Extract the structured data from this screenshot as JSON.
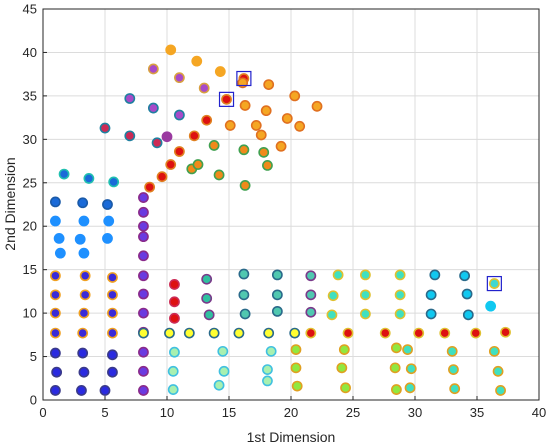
{
  "chart_data": {
    "type": "scatter",
    "title": "",
    "xlabel": "1st Dimension",
    "ylabel": "2nd Dimension",
    "xlim": [
      0,
      40
    ],
    "ylim": [
      0,
      45
    ],
    "xticks": [
      0,
      5,
      10,
      15,
      20,
      25,
      30,
      35,
      40
    ],
    "yticks": [
      0,
      5,
      10,
      15,
      20,
      25,
      30,
      35,
      40,
      45
    ],
    "grid": true,
    "colors": {
      "grid": "#dcdcdc",
      "axis": "#262626",
      "highlight_box": "#2222cc"
    },
    "points": [
      {
        "x": 1.0,
        "y": 1.1,
        "fill": "#2a2ae0",
        "edge": "#3a3a8a"
      },
      {
        "x": 3.1,
        "y": 1.1,
        "fill": "#2a2ae0",
        "edge": "#3a3a8a"
      },
      {
        "x": 5.0,
        "y": 1.1,
        "fill": "#2a2ae0",
        "edge": "#3a3a8a"
      },
      {
        "x": 1.1,
        "y": 3.2,
        "fill": "#2a2ae0",
        "edge": "#3a3a8a"
      },
      {
        "x": 3.3,
        "y": 3.2,
        "fill": "#2a2ae0",
        "edge": "#3a3a8a"
      },
      {
        "x": 5.6,
        "y": 3.2,
        "fill": "#2a2ae0",
        "edge": "#3a3a8a"
      },
      {
        "x": 1.0,
        "y": 5.4,
        "fill": "#2a2ae0",
        "edge": "#3a3a8a"
      },
      {
        "x": 3.2,
        "y": 5.4,
        "fill": "#2a2ae0",
        "edge": "#3a3a8a"
      },
      {
        "x": 5.6,
        "y": 5.2,
        "fill": "#2a2ae0",
        "edge": "#3a3a8a"
      },
      {
        "x": 1.0,
        "y": 7.7,
        "fill": "#3a2ad8",
        "edge": "#f0a020"
      },
      {
        "x": 3.2,
        "y": 7.7,
        "fill": "#3a2ad8",
        "edge": "#f0a020"
      },
      {
        "x": 5.6,
        "y": 7.7,
        "fill": "#3a2ad8",
        "edge": "#f0a020"
      },
      {
        "x": 1.0,
        "y": 10.0,
        "fill": "#3a2ad8",
        "edge": "#f0a020"
      },
      {
        "x": 3.3,
        "y": 10.0,
        "fill": "#3a2ad8",
        "edge": "#f0a020"
      },
      {
        "x": 5.6,
        "y": 10.0,
        "fill": "#3a2ad8",
        "edge": "#f0a020"
      },
      {
        "x": 1.0,
        "y": 12.1,
        "fill": "#3a2ad8",
        "edge": "#f0a020"
      },
      {
        "x": 3.4,
        "y": 12.1,
        "fill": "#3a2ad8",
        "edge": "#f0a020"
      },
      {
        "x": 5.6,
        "y": 12.1,
        "fill": "#3a2ad8",
        "edge": "#f0a020"
      },
      {
        "x": 1.0,
        "y": 14.3,
        "fill": "#3a2ad8",
        "edge": "#f0a020"
      },
      {
        "x": 3.4,
        "y": 14.3,
        "fill": "#3a2ad8",
        "edge": "#f0a020"
      },
      {
        "x": 5.6,
        "y": 14.1,
        "fill": "#3a2ad8",
        "edge": "#f0a020"
      },
      {
        "x": 1.4,
        "y": 16.9,
        "fill": "#1e90ff",
        "edge": "#1e90ff"
      },
      {
        "x": 3.3,
        "y": 16.9,
        "fill": "#1e90ff",
        "edge": "#1e90ff"
      },
      {
        "x": 1.3,
        "y": 18.6,
        "fill": "#1e90ff",
        "edge": "#1e90ff"
      },
      {
        "x": 3.0,
        "y": 18.5,
        "fill": "#1e90ff",
        "edge": "#1e90ff"
      },
      {
        "x": 5.2,
        "y": 18.6,
        "fill": "#1e90ff",
        "edge": "#1e90ff"
      },
      {
        "x": 1.0,
        "y": 20.6,
        "fill": "#1e90ff",
        "edge": "#1e90ff"
      },
      {
        "x": 3.3,
        "y": 20.6,
        "fill": "#1e90ff",
        "edge": "#1e90ff"
      },
      {
        "x": 5.3,
        "y": 20.6,
        "fill": "#1e90ff",
        "edge": "#1e90ff"
      },
      {
        "x": 1.0,
        "y": 22.8,
        "fill": "#1a6ad8",
        "edge": "#1a5aa8"
      },
      {
        "x": 3.2,
        "y": 22.7,
        "fill": "#1a6ad8",
        "edge": "#1a5aa8"
      },
      {
        "x": 5.2,
        "y": 22.5,
        "fill": "#1a6ad8",
        "edge": "#1a5aa8"
      },
      {
        "x": 1.7,
        "y": 26.0,
        "fill": "#1a6ad8",
        "edge": "#20c0b0"
      },
      {
        "x": 3.7,
        "y": 25.5,
        "fill": "#1a6ad8",
        "edge": "#20c0b0"
      },
      {
        "x": 5.7,
        "y": 25.1,
        "fill": "#1a6ad8",
        "edge": "#20c0b0"
      },
      {
        "x": 8.1,
        "y": 1.1,
        "fill": "#6a3ae0",
        "edge": "#8a2a8a"
      },
      {
        "x": 8.1,
        "y": 3.3,
        "fill": "#6a3ae0",
        "edge": "#8a2a8a"
      },
      {
        "x": 8.1,
        "y": 5.5,
        "fill": "#6a3ae0",
        "edge": "#8a2a8a"
      },
      {
        "x": 8.1,
        "y": 7.8,
        "fill": "#6a3ae0",
        "edge": "#8a2a8a"
      },
      {
        "x": 8.1,
        "y": 10.0,
        "fill": "#6a3ae0",
        "edge": "#8a2a8a"
      },
      {
        "x": 8.1,
        "y": 12.2,
        "fill": "#6a3ae0",
        "edge": "#8a2a8a"
      },
      {
        "x": 8.1,
        "y": 14.3,
        "fill": "#6a3ae0",
        "edge": "#8a2a8a"
      },
      {
        "x": 8.1,
        "y": 16.6,
        "fill": "#6a3ae0",
        "edge": "#8a2a8a"
      },
      {
        "x": 8.1,
        "y": 18.8,
        "fill": "#6a3ae0",
        "edge": "#8a2a8a"
      },
      {
        "x": 8.1,
        "y": 20.0,
        "fill": "#6a3ae0",
        "edge": "#8a2a8a"
      },
      {
        "x": 8.1,
        "y": 21.6,
        "fill": "#6a3ae0",
        "edge": "#8a2a8a"
      },
      {
        "x": 8.1,
        "y": 23.3,
        "fill": "#6a3ae0",
        "edge": "#8a2a8a"
      },
      {
        "x": 8.6,
        "y": 24.5,
        "fill": "#dd1111",
        "edge": "#e08020"
      },
      {
        "x": 9.6,
        "y": 25.7,
        "fill": "#dd1111",
        "edge": "#e08020"
      },
      {
        "x": 10.3,
        "y": 27.1,
        "fill": "#dd1111",
        "edge": "#e08020"
      },
      {
        "x": 11.0,
        "y": 28.6,
        "fill": "#dd1111",
        "edge": "#e08020"
      },
      {
        "x": 12.2,
        "y": 30.4,
        "fill": "#dd1111",
        "edge": "#e08020"
      },
      {
        "x": 13.2,
        "y": 32.2,
        "fill": "#dd1111",
        "edge": "#e08020"
      },
      {
        "x": 14.8,
        "y": 34.6,
        "fill": "#dd1111",
        "edge": "#e08020"
      },
      {
        "x": 16.2,
        "y": 37.0,
        "fill": "#dd1111",
        "edge": "#e08020"
      },
      {
        "x": 10.3,
        "y": 40.3,
        "fill": "#f5a623",
        "edge": "#f5a623"
      },
      {
        "x": 12.4,
        "y": 39.0,
        "fill": "#f5a623",
        "edge": "#f5a623"
      },
      {
        "x": 14.3,
        "y": 37.8,
        "fill": "#f5a623",
        "edge": "#f5a623"
      },
      {
        "x": 8.9,
        "y": 38.1,
        "fill": "#a84ac8",
        "edge": "#d8a040"
      },
      {
        "x": 11.0,
        "y": 37.1,
        "fill": "#a84ac8",
        "edge": "#d8a040"
      },
      {
        "x": 13.0,
        "y": 35.9,
        "fill": "#a84ac8",
        "edge": "#d8a040"
      },
      {
        "x": 7.0,
        "y": 34.7,
        "fill": "#a84ac8",
        "edge": "#2080a0"
      },
      {
        "x": 8.9,
        "y": 33.6,
        "fill": "#a84ac8",
        "edge": "#2080a0"
      },
      {
        "x": 11.0,
        "y": 32.8,
        "fill": "#a84ac8",
        "edge": "#2080a0"
      },
      {
        "x": 5.0,
        "y": 31.3,
        "fill": "#cc2a55",
        "edge": "#2080a0"
      },
      {
        "x": 7.0,
        "y": 30.4,
        "fill": "#cc2a55",
        "edge": "#2080a0"
      },
      {
        "x": 9.2,
        "y": 29.6,
        "fill": "#cc2a55",
        "edge": "#2080a0"
      },
      {
        "x": 10.0,
        "y": 30.3,
        "fill": "#9a3aa0",
        "edge": "#9a3aa0"
      },
      {
        "x": 12.0,
        "y": 26.6,
        "fill": "#f08a1a",
        "edge": "#40a050"
      },
      {
        "x": 14.2,
        "y": 25.9,
        "fill": "#f08a1a",
        "edge": "#40a050"
      },
      {
        "x": 16.3,
        "y": 24.7,
        "fill": "#f08a1a",
        "edge": "#40a050"
      },
      {
        "x": 13.8,
        "y": 29.3,
        "fill": "#f08a1a",
        "edge": "#40a050"
      },
      {
        "x": 16.2,
        "y": 28.8,
        "fill": "#f08a1a",
        "edge": "#40a050"
      },
      {
        "x": 17.8,
        "y": 28.5,
        "fill": "#f08a1a",
        "edge": "#40a050"
      },
      {
        "x": 12.5,
        "y": 27.1,
        "fill": "#f08a1a",
        "edge": "#40a050"
      },
      {
        "x": 18.1,
        "y": 27.0,
        "fill": "#f08a1a",
        "edge": "#40a050"
      },
      {
        "x": 15.1,
        "y": 31.6,
        "fill": "#f5a623",
        "edge": "#e07020"
      },
      {
        "x": 16.3,
        "y": 33.9,
        "fill": "#f5a623",
        "edge": "#e07020"
      },
      {
        "x": 16.1,
        "y": 36.5,
        "fill": "#f5a623",
        "edge": "#e07020"
      },
      {
        "x": 17.2,
        "y": 31.6,
        "fill": "#f5a623",
        "edge": "#e07020"
      },
      {
        "x": 17.6,
        "y": 30.5,
        "fill": "#f5a623",
        "edge": "#e07020"
      },
      {
        "x": 18.0,
        "y": 33.3,
        "fill": "#f5a623",
        "edge": "#e07020"
      },
      {
        "x": 18.2,
        "y": 36.3,
        "fill": "#f5a623",
        "edge": "#e07020"
      },
      {
        "x": 19.2,
        "y": 29.2,
        "fill": "#f5a623",
        "edge": "#e07020"
      },
      {
        "x": 19.7,
        "y": 32.4,
        "fill": "#f5a623",
        "edge": "#e07020"
      },
      {
        "x": 20.3,
        "y": 35.0,
        "fill": "#f5a623",
        "edge": "#e07020"
      },
      {
        "x": 20.7,
        "y": 31.5,
        "fill": "#f5a623",
        "edge": "#e07020"
      },
      {
        "x": 22.1,
        "y": 33.8,
        "fill": "#f5a623",
        "edge": "#e07020"
      },
      {
        "x": 8.1,
        "y": 7.7,
        "fill": "#ffff30",
        "edge": "#2a6a8a"
      },
      {
        "x": 10.2,
        "y": 7.7,
        "fill": "#ffff30",
        "edge": "#2a6a8a"
      },
      {
        "x": 11.8,
        "y": 7.7,
        "fill": "#ffff30",
        "edge": "#2a6a8a"
      },
      {
        "x": 13.8,
        "y": 7.7,
        "fill": "#ffff30",
        "edge": "#2a6a8a"
      },
      {
        "x": 15.8,
        "y": 7.7,
        "fill": "#ffff30",
        "edge": "#2a6a8a"
      },
      {
        "x": 18.2,
        "y": 7.7,
        "fill": "#ffff30",
        "edge": "#2a6a8a"
      },
      {
        "x": 20.3,
        "y": 7.7,
        "fill": "#ffff30",
        "edge": "#2a6a8a"
      },
      {
        "x": 10.6,
        "y": 13.3,
        "fill": "#dd1111",
        "edge": "#cc2a55"
      },
      {
        "x": 10.6,
        "y": 11.3,
        "fill": "#dd1111",
        "edge": "#cc2a55"
      },
      {
        "x": 10.6,
        "y": 9.4,
        "fill": "#dd1111",
        "edge": "#cc2a55"
      },
      {
        "x": 13.2,
        "y": 13.9,
        "fill": "#30c0a0",
        "edge": "#7a3a8a"
      },
      {
        "x": 13.2,
        "y": 11.7,
        "fill": "#30c0a0",
        "edge": "#7a3a8a"
      },
      {
        "x": 13.4,
        "y": 9.8,
        "fill": "#30c0a0",
        "edge": "#7a3a8a"
      },
      {
        "x": 16.2,
        "y": 14.5,
        "fill": "#50c8b0",
        "edge": "#2a6a8a"
      },
      {
        "x": 16.2,
        "y": 12.1,
        "fill": "#50c8b0",
        "edge": "#2a6a8a"
      },
      {
        "x": 16.3,
        "y": 9.9,
        "fill": "#50c8b0",
        "edge": "#2a6a8a"
      },
      {
        "x": 18.9,
        "y": 14.4,
        "fill": "#50c8b0",
        "edge": "#2a6a8a"
      },
      {
        "x": 18.9,
        "y": 12.1,
        "fill": "#50c8b0",
        "edge": "#2a6a8a"
      },
      {
        "x": 18.9,
        "y": 10.2,
        "fill": "#50c8b0",
        "edge": "#2a6a8a"
      },
      {
        "x": 21.6,
        "y": 14.3,
        "fill": "#50c8b0",
        "edge": "#7a3a8a"
      },
      {
        "x": 21.6,
        "y": 12.1,
        "fill": "#50c8b0",
        "edge": "#7a3a8a"
      },
      {
        "x": 21.6,
        "y": 10.1,
        "fill": "#50c8b0",
        "edge": "#7a3a8a"
      },
      {
        "x": 23.8,
        "y": 14.4,
        "fill": "#40e0c0",
        "edge": "#e0c030"
      },
      {
        "x": 23.4,
        "y": 12.0,
        "fill": "#40e0c0",
        "edge": "#e0c030"
      },
      {
        "x": 23.3,
        "y": 9.8,
        "fill": "#40e0c0",
        "edge": "#e0c030"
      },
      {
        "x": 26.0,
        "y": 14.4,
        "fill": "#40e0c0",
        "edge": "#e0c030"
      },
      {
        "x": 26.0,
        "y": 12.1,
        "fill": "#40e0c0",
        "edge": "#e0c030"
      },
      {
        "x": 26.0,
        "y": 9.9,
        "fill": "#40e0c0",
        "edge": "#e0c030"
      },
      {
        "x": 28.8,
        "y": 14.4,
        "fill": "#40e0c0",
        "edge": "#e0c030"
      },
      {
        "x": 28.8,
        "y": 12.1,
        "fill": "#40e0c0",
        "edge": "#e0c030"
      },
      {
        "x": 28.8,
        "y": 9.9,
        "fill": "#40e0c0",
        "edge": "#e0c030"
      },
      {
        "x": 31.6,
        "y": 14.4,
        "fill": "#10c8f0",
        "edge": "#2a6a8a"
      },
      {
        "x": 31.3,
        "y": 12.1,
        "fill": "#10c8f0",
        "edge": "#2a6a8a"
      },
      {
        "x": 31.3,
        "y": 9.9,
        "fill": "#10c8f0",
        "edge": "#2a6a8a"
      },
      {
        "x": 34.0,
        "y": 14.3,
        "fill": "#10c8f0",
        "edge": "#2a6a8a"
      },
      {
        "x": 34.2,
        "y": 12.2,
        "fill": "#10c8f0",
        "edge": "#2a6a8a"
      },
      {
        "x": 34.3,
        "y": 9.8,
        "fill": "#10c8f0",
        "edge": "#2a6a8a"
      },
      {
        "x": 36.4,
        "y": 13.4,
        "fill": "#40d8d0",
        "edge": "#e0c030"
      },
      {
        "x": 36.1,
        "y": 10.8,
        "fill": "#10c8f0",
        "edge": "#10c8f0"
      },
      {
        "x": 21.6,
        "y": 7.7,
        "fill": "#dd1111",
        "edge": "#e0c030"
      },
      {
        "x": 24.6,
        "y": 7.7,
        "fill": "#dd1111",
        "edge": "#e0c030"
      },
      {
        "x": 27.6,
        "y": 7.7,
        "fill": "#dd1111",
        "edge": "#e0c030"
      },
      {
        "x": 30.3,
        "y": 7.7,
        "fill": "#dd1111",
        "edge": "#e0c030"
      },
      {
        "x": 32.4,
        "y": 7.7,
        "fill": "#dd1111",
        "edge": "#e0c030"
      },
      {
        "x": 34.9,
        "y": 7.7,
        "fill": "#dd1111",
        "edge": "#e0c030"
      },
      {
        "x": 37.3,
        "y": 7.8,
        "fill": "#dd1111",
        "edge": "#e0c030"
      },
      {
        "x": 10.6,
        "y": 5.5,
        "fill": "#a8f0b0",
        "edge": "#40c0e0"
      },
      {
        "x": 10.5,
        "y": 3.3,
        "fill": "#a8f0b0",
        "edge": "#40c0e0"
      },
      {
        "x": 10.5,
        "y": 1.2,
        "fill": "#a8f0b0",
        "edge": "#40c0e0"
      },
      {
        "x": 14.5,
        "y": 5.6,
        "fill": "#a8f0b0",
        "edge": "#40c0e0"
      },
      {
        "x": 14.6,
        "y": 3.3,
        "fill": "#a8f0b0",
        "edge": "#40c0e0"
      },
      {
        "x": 14.2,
        "y": 1.7,
        "fill": "#a8f0b0",
        "edge": "#40c0e0"
      },
      {
        "x": 18.4,
        "y": 5.6,
        "fill": "#a8f0b0",
        "edge": "#40c0e0"
      },
      {
        "x": 18.1,
        "y": 3.5,
        "fill": "#a8f0b0",
        "edge": "#40c0e0"
      },
      {
        "x": 18.1,
        "y": 2.2,
        "fill": "#a8f0b0",
        "edge": "#40c0e0"
      },
      {
        "x": 20.4,
        "y": 5.8,
        "fill": "#90e840",
        "edge": "#e0a020"
      },
      {
        "x": 20.4,
        "y": 3.7,
        "fill": "#90e840",
        "edge": "#e0a020"
      },
      {
        "x": 20.5,
        "y": 1.6,
        "fill": "#90e840",
        "edge": "#e0a020"
      },
      {
        "x": 24.3,
        "y": 5.8,
        "fill": "#90e840",
        "edge": "#e0a020"
      },
      {
        "x": 24.1,
        "y": 3.7,
        "fill": "#90e840",
        "edge": "#e0a020"
      },
      {
        "x": 24.4,
        "y": 1.4,
        "fill": "#90e840",
        "edge": "#e0a020"
      },
      {
        "x": 28.5,
        "y": 6.0,
        "fill": "#90e840",
        "edge": "#e0a020"
      },
      {
        "x": 28.4,
        "y": 3.7,
        "fill": "#90e840",
        "edge": "#e0a020"
      },
      {
        "x": 28.5,
        "y": 1.2,
        "fill": "#90e840",
        "edge": "#e0a020"
      },
      {
        "x": 29.4,
        "y": 5.8,
        "fill": "#40e0c0",
        "edge": "#e0a020"
      },
      {
        "x": 29.7,
        "y": 3.6,
        "fill": "#40e0c0",
        "edge": "#e0a020"
      },
      {
        "x": 29.6,
        "y": 1.4,
        "fill": "#40e0c0",
        "edge": "#e0a020"
      },
      {
        "x": 33.0,
        "y": 5.6,
        "fill": "#40e0c0",
        "edge": "#e0a020"
      },
      {
        "x": 33.1,
        "y": 3.5,
        "fill": "#40e0c0",
        "edge": "#e0a020"
      },
      {
        "x": 33.2,
        "y": 1.3,
        "fill": "#40e0c0",
        "edge": "#e0a020"
      },
      {
        "x": 36.4,
        "y": 5.6,
        "fill": "#40e0c0",
        "edge": "#e0a020"
      },
      {
        "x": 36.7,
        "y": 3.3,
        "fill": "#40e0c0",
        "edge": "#e0a020"
      },
      {
        "x": 36.9,
        "y": 1.1,
        "fill": "#40e0c0",
        "edge": "#e0a020"
      }
    ],
    "highlighted_points": [
      {
        "x": 14.8,
        "y": 34.6
      },
      {
        "x": 16.2,
        "y": 37.0
      },
      {
        "x": 36.4,
        "y": 13.4
      }
    ]
  }
}
